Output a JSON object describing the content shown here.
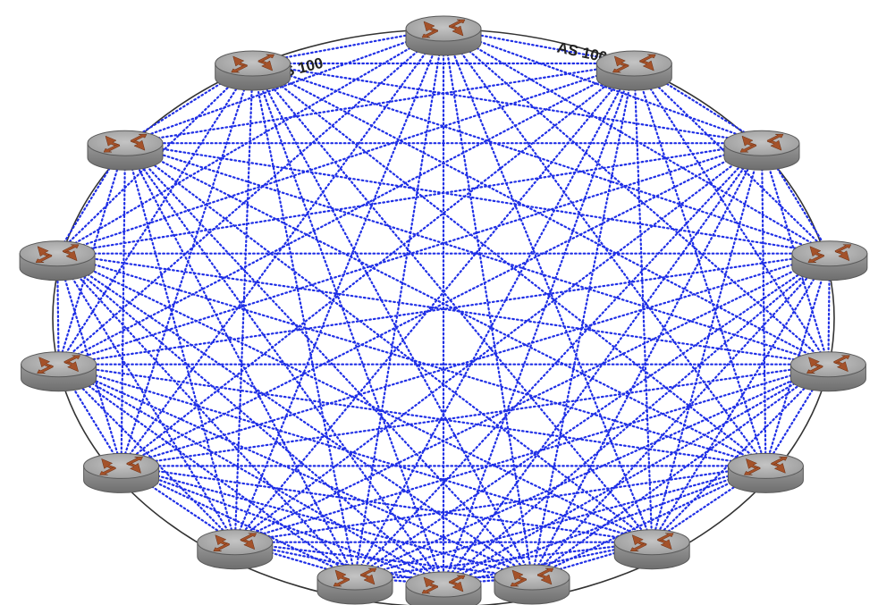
{
  "diagram": {
    "labels": [
      {
        "id": "as-label-left",
        "text": "AS 100"
      },
      {
        "id": "as-label-right",
        "text": "AS 100"
      }
    ],
    "router_count": 16,
    "topology": "full-mesh",
    "link_style": "dotted",
    "colors": {
      "link": "#1f2fe6",
      "boundary": "#333333",
      "router_top": "#a9a9a9",
      "router_side": "#8c8c8c",
      "router_arrows": "#a4522a",
      "background": "#ffffff"
    },
    "icons": {
      "router": "router-icon"
    }
  }
}
